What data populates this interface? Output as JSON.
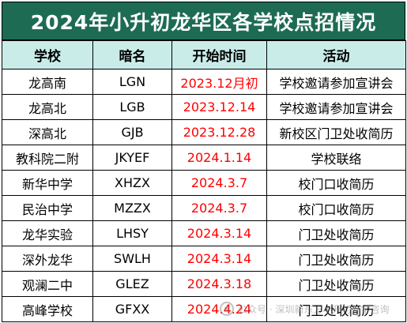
{
  "title": "2024年小升初龙华区各学校点招情况",
  "table": {
    "headers": [
      "学校",
      "暗名",
      "开始时间",
      "活动"
    ],
    "rows": [
      {
        "school": "龙高南",
        "code": "LGN",
        "date": "2023.12月初",
        "activity": "学校邀请参加宣讲会"
      },
      {
        "school": "龙高北",
        "code": "LGB",
        "date": "2023.12.14",
        "activity": "学校邀请参加宣讲会"
      },
      {
        "school": "深高北",
        "code": "GJB",
        "date": "2023.12.28",
        "activity": "新校区门卫处收简历"
      },
      {
        "school": "教科院二附",
        "code": "JKYEF",
        "date": "2024.1.14",
        "activity": "学校联络"
      },
      {
        "school": "新华中学",
        "code": "XHZX",
        "date": "2024.3.7",
        "activity": "校门口收简历"
      },
      {
        "school": "民治中学",
        "code": "MZZX",
        "date": "2024.3.7",
        "activity": "校门口收简历"
      },
      {
        "school": "龙华实验",
        "code": "LHSY",
        "date": "2024.3.14",
        "activity": "门卫处收简历"
      },
      {
        "school": "深外龙华",
        "code": "SWLH",
        "date": "2024.3.14",
        "activity": "门卫处收简历"
      },
      {
        "school": "观澜二中",
        "code": "GLEZ",
        "date": "2024.3.18",
        "activity": "门卫处收简历"
      },
      {
        "school": "高峰学校",
        "code": "GFXX",
        "date": "2024.4.24",
        "activity": "门卫处收简历"
      }
    ]
  },
  "colors": {
    "title_bg": "#1e6b53",
    "header_bg": "#c9ece9",
    "date_text": "#ff0000"
  },
  "watermark": {
    "text": "公众号 · 深圳新东方小升初升学咨询",
    "icon": "wechat-logo-icon"
  }
}
